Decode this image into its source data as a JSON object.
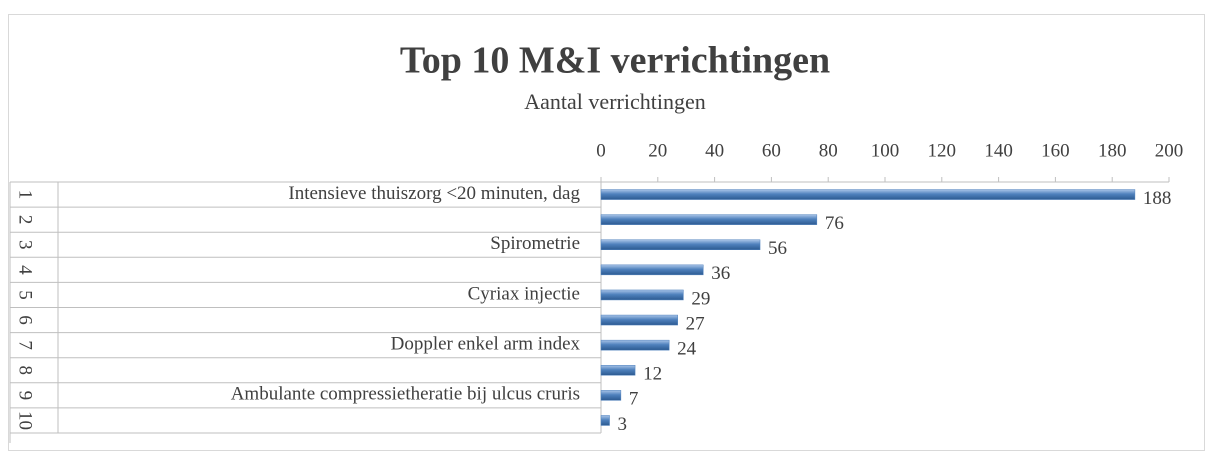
{
  "chart_data": {
    "type": "bar",
    "orientation": "horizontal",
    "title": "Top 10 M&I verrichtingen",
    "subtitle": "Aantal verrichtingen",
    "ranks": [
      "1",
      "2",
      "3",
      "4",
      "5",
      "6",
      "7",
      "8",
      "9",
      "10"
    ],
    "categories": [
      "Intensieve thuiszorg <20 minuten, dag",
      null,
      "Spirometrie",
      null,
      "Cyriax injectie",
      null,
      "Doppler enkel arm index",
      null,
      "Ambulante compressietheratie bij ulcus cruris",
      null
    ],
    "values": [
      188,
      76,
      56,
      36,
      29,
      27,
      24,
      12,
      7,
      3
    ],
    "color": "#4f81bd",
    "xlim": [
      0,
      200
    ],
    "xticks": [
      0,
      20,
      40,
      60,
      80,
      100,
      120,
      140,
      160,
      180,
      200
    ],
    "xaxis_position": "top",
    "grid": false
  }
}
